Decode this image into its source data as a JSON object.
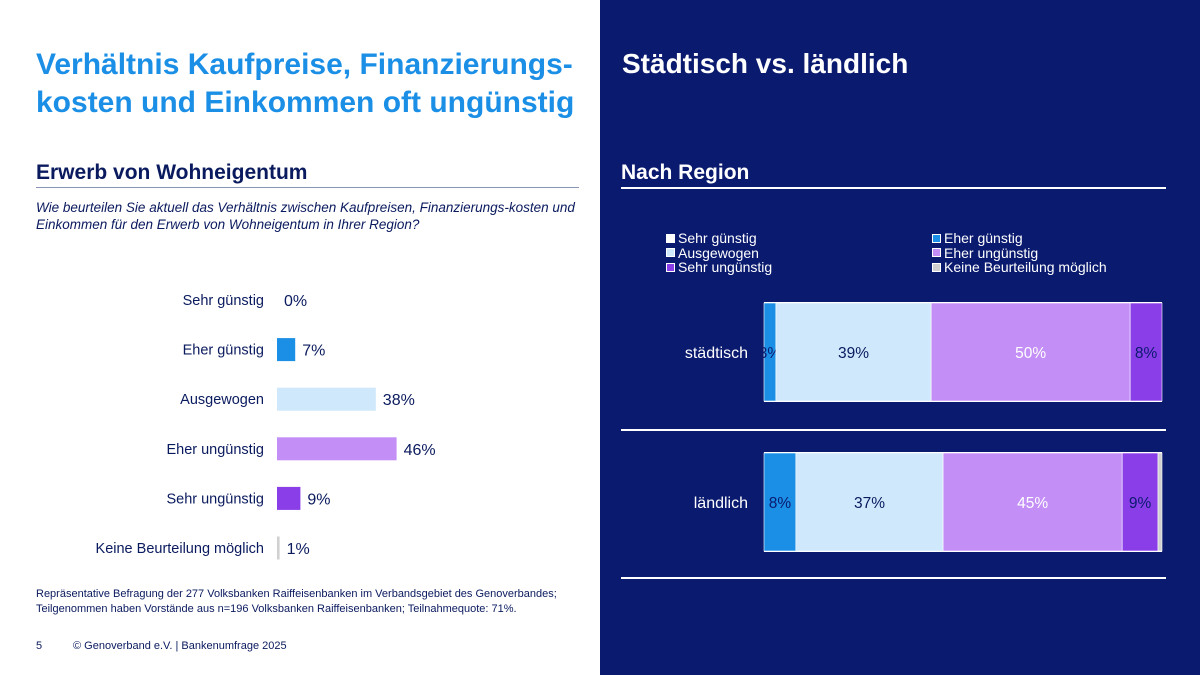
{
  "left": {
    "title": "Verhältnis Kaufpreise, Finanzierungs-kosten und Einkommen oft ungünstig",
    "section_title": "Erwerb von Wohneigentum",
    "question": "Wie beurteilen Sie aktuell das Verhältnis zwischen Kaufpreisen, Finanzierungs-kosten und Einkommen für den Erwerb von Wohneigentum in Ihrer Region?",
    "footnote": "Repräsentative Befragung der 277 Volksbanken Raiffeisenbanken im Verbandsgebiet des Genoverbandes; Teilgenommen haben Vorstände aus n=196 Volksbanken Raiffeisenbanken; Teilnahmequote: 71%.",
    "page_number": "5",
    "copyright": "© Genoverband e.V. | Bankenumfrage 2025"
  },
  "right": {
    "title": "Städtisch vs. ländlich",
    "subtitle": "Nach Region"
  },
  "colors": {
    "sehr_guenstig": "#ffffff",
    "eher_guenstig": "#1b8fe6",
    "ausgewogen": "#cfe8fb",
    "eher_unguenstig": "#c38ef5",
    "sehr_unguenstig": "#8a3ee8",
    "keine": "#d0d0d0",
    "navy": "#0a1a6e"
  },
  "chart_data": [
    {
      "type": "bar",
      "orientation": "horizontal",
      "categories": [
        "Sehr günstig",
        "Eher günstig",
        "Ausgewogen",
        "Eher ungünstig",
        "Sehr ungünstig",
        "Keine Beurteilung möglich"
      ],
      "values": [
        0,
        7,
        38,
        46,
        9,
        1
      ],
      "labels": [
        "0%",
        "7%",
        "38%",
        "46%",
        "9%",
        "1%"
      ],
      "unit": "%"
    },
    {
      "type": "bar",
      "orientation": "horizontal",
      "stacked": true,
      "categories": [
        "städtisch",
        "ländlich"
      ],
      "legend_position": "top",
      "series": [
        {
          "name": "Sehr günstig",
          "values": [
            0,
            0
          ],
          "labels": [
            "",
            ""
          ]
        },
        {
          "name": "Eher günstig",
          "values": [
            3,
            8
          ],
          "labels": [
            "3%",
            "8%"
          ]
        },
        {
          "name": "Ausgewogen",
          "values": [
            39,
            37
          ],
          "labels": [
            "39%",
            "37%"
          ]
        },
        {
          "name": "Eher ungünstig",
          "values": [
            50,
            45
          ],
          "labels": [
            "50%",
            "45%"
          ]
        },
        {
          "name": "Sehr ungünstig",
          "values": [
            8,
            9
          ],
          "labels": [
            "8%",
            "9%"
          ]
        },
        {
          "name": "Keine Beurteilung möglich",
          "values": [
            0,
            1
          ],
          "labels": [
            "",
            ""
          ]
        }
      ]
    }
  ]
}
